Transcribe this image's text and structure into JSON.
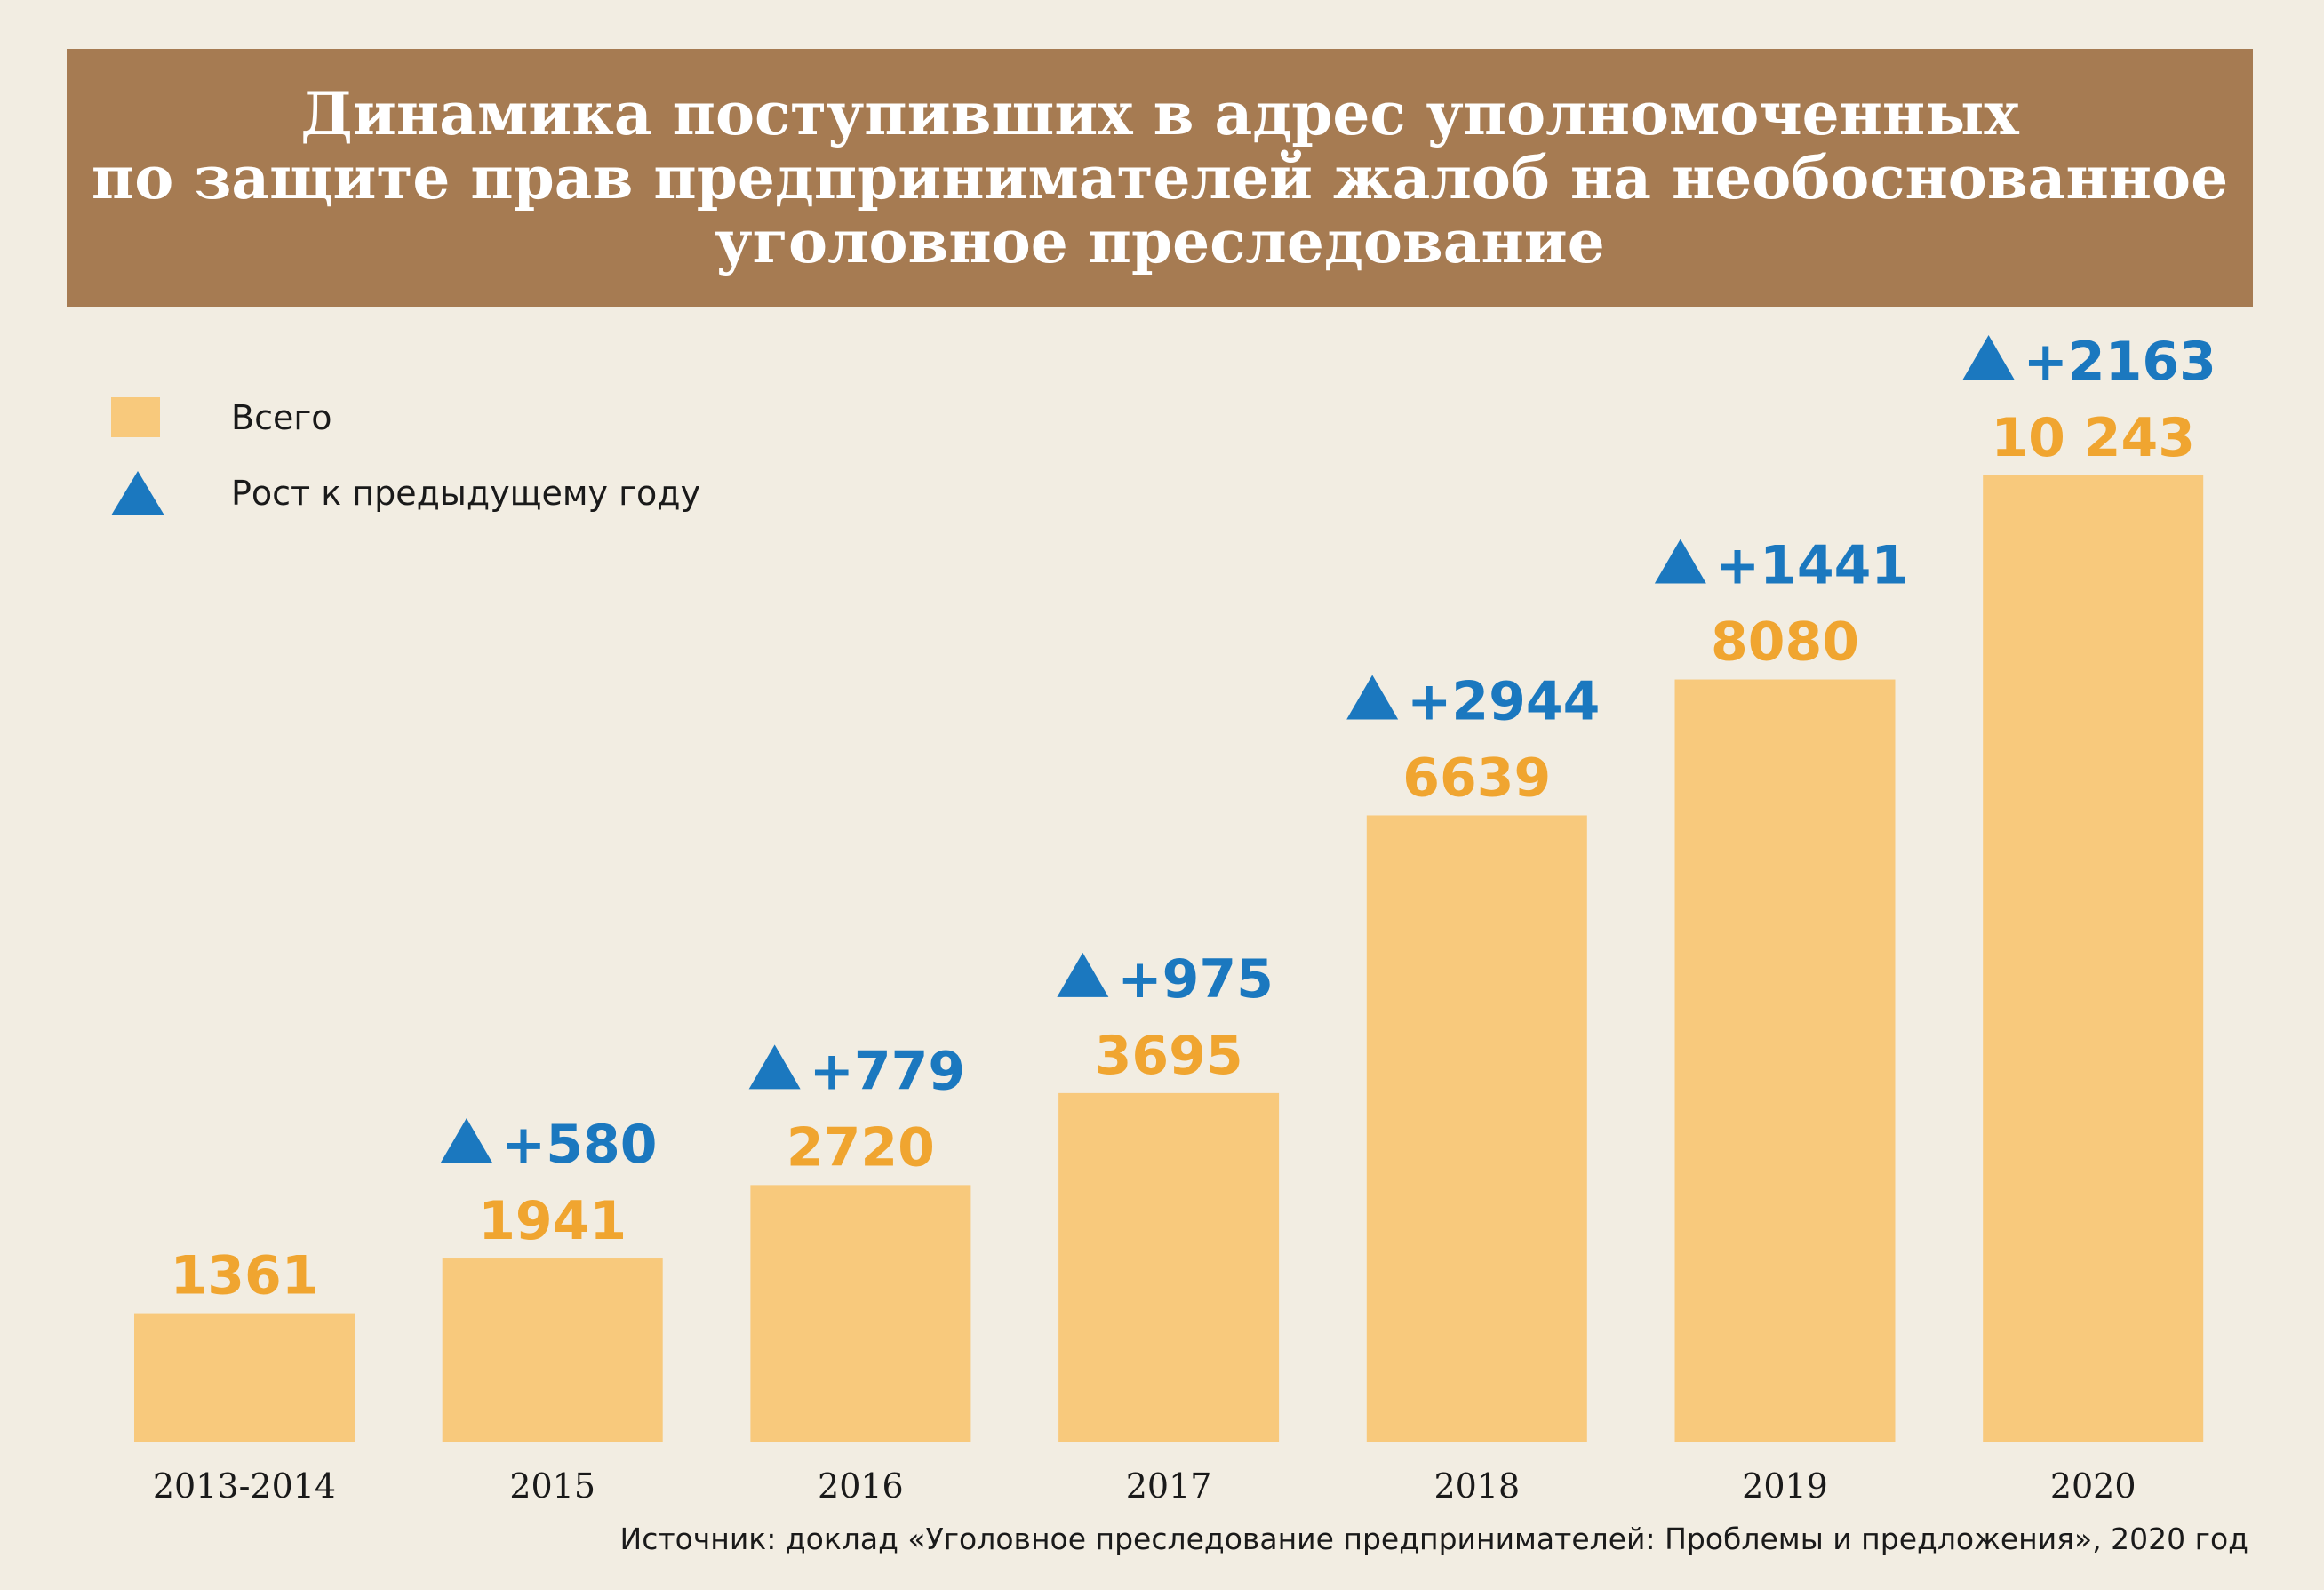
{
  "title": {
    "line1": "Динамика поступивших в адрес уполномоченных",
    "line2": "по защите прав предпринимателей жалоб на необоснованное",
    "line3": "уголовное преследование"
  },
  "legend": {
    "total_label": "Всего",
    "growth_label": "Рост к предыдущему году"
  },
  "source": "Источник: доклад «Уголовное преследование предпринимателей: Проблемы и предложения», 2020 год",
  "colors": {
    "bar": "#f8c97c",
    "value_text": "#f0a530",
    "growth": "#1b78bf",
    "banner": "#a67b52",
    "background": "#f2ede2"
  },
  "chart_data": {
    "type": "bar",
    "categories": [
      "2013-2014",
      "2015",
      "2016",
      "2017",
      "2018",
      "2019",
      "2020"
    ],
    "values": [
      1361,
      1941,
      2720,
      3695,
      6639,
      8080,
      10243
    ],
    "value_labels": [
      "1361",
      "1941",
      "2720",
      "3695",
      "6639",
      "8080",
      "10 243"
    ],
    "growth_labels": [
      "",
      "+580",
      "+779",
      "+975",
      "+2944",
      "+1441",
      "+2163"
    ],
    "series": [
      {
        "name": "Всего",
        "values": [
          1361,
          1941,
          2720,
          3695,
          6639,
          8080,
          10243
        ]
      },
      {
        "name": "Рост к предыдущему году",
        "values": [
          null,
          580,
          779,
          975,
          2944,
          1441,
          2163
        ]
      }
    ],
    "ylim": [
      0,
      10243
    ],
    "grid": false,
    "legend_position": "top-left"
  }
}
